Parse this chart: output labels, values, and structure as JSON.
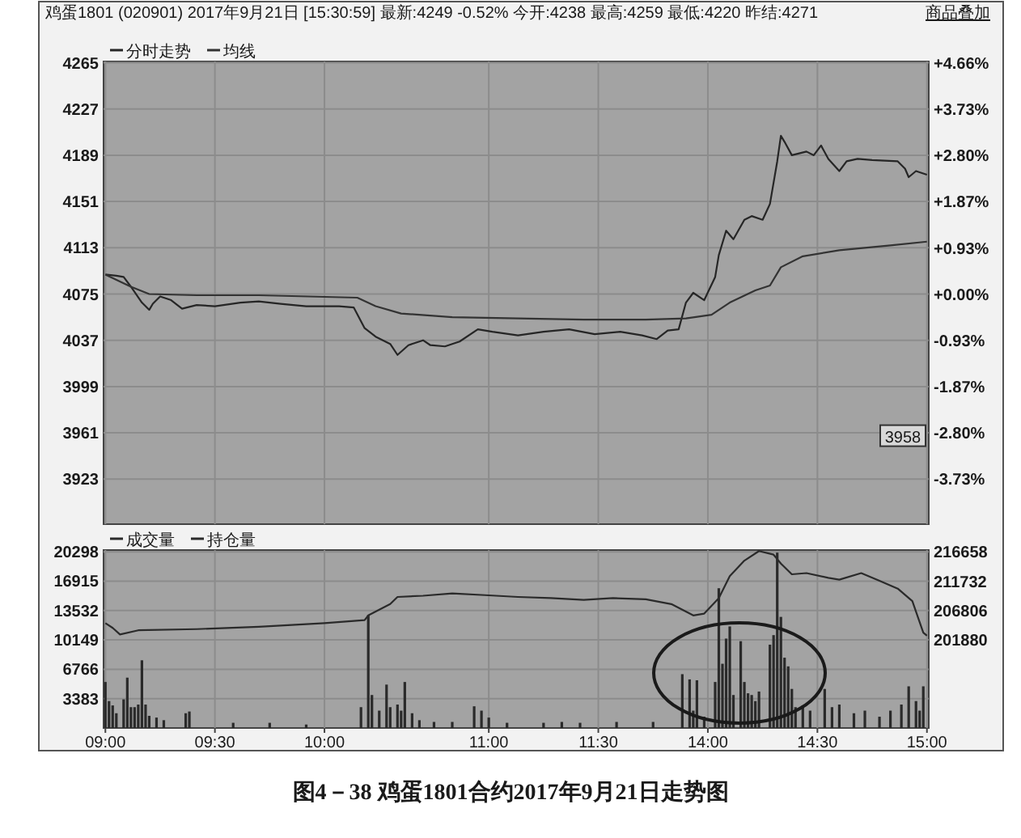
{
  "chart_data": [
    {
      "type": "line",
      "title": "鸡蛋1801 (020901) 2017年9月21日 [15:30:59] 最新:4249 -0.52% 今开:4238 最高:4259 最低:4220 昨结:4271",
      "categories": [
        null,
        null,
        null,
        null,
        null,
        null,
        null,
        null,
        null,
        null,
        null,
        null,
        null,
        null,
        null,
        null,
        null,
        null,
        null,
        null,
        null,
        null,
        null,
        null,
        null,
        null,
        null,
        null,
        null,
        null,
        null,
        null,
        null,
        null,
        null,
        null,
        null,
        null,
        null,
        null,
        null,
        null,
        null,
        null,
        null,
        null,
        null,
        null,
        null,
        null,
        null,
        null,
        null,
        null,
        null,
        null,
        null,
        null,
        null,
        null,
        null,
        null,
        null,
        null,
        null,
        null,
        null,
        null,
        null,
        null,
        null,
        null,
        null,
        null,
        null,
        null,
        null,
        null,
        null,
        null,
        null,
        null,
        null,
        null,
        null,
        null,
        null,
        null,
        null,
        null,
        null,
        null,
        null,
        null,
        null,
        null,
        null,
        null,
        null,
        null,
        null,
        null,
        null,
        null,
        null,
        null,
        null,
        null,
        null,
        null,
        null,
        null,
        null,
        null,
        null,
        null,
        null,
        null,
        null,
        null,
        null,
        null,
        null,
        null,
        null,
        null,
        null,
        null,
        null,
        null,
        null,
        null,
        null,
        null,
        null,
        null,
        null,
        null,
        null,
        null,
        null,
        null,
        null,
        null,
        null,
        null,
        null,
        null,
        null,
        null,
        null,
        null,
        null,
        null,
        null,
        null,
        null,
        null,
        null,
        null,
        null,
        null,
        null,
        null,
        null,
        null,
        null,
        null,
        null,
        null,
        null,
        null,
        null,
        null,
        null,
        null,
        null,
        null,
        null,
        null,
        null,
        null,
        null,
        null,
        null,
        null,
        null,
        null,
        null,
        null,
        null,
        null,
        null,
        null,
        null,
        null,
        null,
        null,
        null,
        null,
        null,
        null,
        null,
        null,
        null,
        null,
        null,
        null,
        null,
        null,
        null,
        null,
        null,
        null,
        null,
        null,
        null,
        null,
        null,
        null,
        null,
        null,
        null,
        null,
        null,
        null
      ],
      "ylim": [
        3886,
        4266
      ],
      "yticks": [
        3923,
        3961,
        3999,
        4037,
        4075,
        4113,
        4151,
        4189,
        4227,
        4265
      ],
      "y2lim": [
        -4.64,
        4.69
      ],
      "y2ticks": [
        {
          "value": 4.66,
          "label": "+4.66%"
        },
        {
          "value": 3.73,
          "label": "+3.73%"
        },
        {
          "value": 2.8,
          "label": "+2.80%"
        },
        {
          "value": 1.87,
          "label": "+1.87%"
        },
        {
          "value": 0.93,
          "label": "+0.93%"
        },
        {
          "value": 0,
          "label": "+0.00%"
        },
        {
          "value": -0.93,
          "label": "-0.93%"
        },
        {
          "value": -1.87,
          "label": "-1.87%"
        },
        {
          "value": -2.8,
          "label": "-2.80%"
        },
        {
          "value": -3.73,
          "label": "-3.73%"
        }
      ],
      "grid": true,
      "legend": "top left",
      "tick_labels": "y",
      "series": [
        {
          "name": "分时走势",
          "color": "#262626",
          "values": [
            4091,
            null,
            null,
            4090,
            null,
            4089,
            null,
            4081,
            null,
            null,
            4068,
            null,
            4062,
            4067,
            null,
            4073,
            null,
            null,
            4070,
            null,
            null,
            4063,
            null,
            null,
            null,
            4066,
            null,
            null,
            null,
            null,
            4065,
            null,
            null,
            null,
            null,
            null,
            null,
            4068,
            null,
            null,
            null,
            null,
            4069,
            null,
            null,
            null,
            null,
            null,
            4067,
            null,
            null,
            null,
            null,
            null,
            null,
            4065,
            null,
            null,
            null,
            null,
            null,
            null,
            null,
            null,
            4065,
            null,
            null,
            null,
            4064,
            null,
            null,
            4047,
            null,
            null,
            4040,
            null,
            null,
            null,
            4034,
            null,
            4025,
            null,
            null,
            4033,
            null,
            null,
            null,
            4037,
            null,
            4033,
            null,
            null,
            null,
            4032,
            null,
            null,
            null,
            4036,
            null,
            null,
            null,
            null,
            4046,
            null,
            null,
            null,
            4044,
            null,
            null,
            null,
            null,
            null,
            null,
            4041,
            null,
            null,
            null,
            null,
            null,
            null,
            4044,
            null,
            null,
            null,
            null,
            null,
            null,
            4046,
            null,
            null,
            null,
            null,
            null,
            null,
            4042,
            null,
            null,
            null,
            null,
            null,
            null,
            4044,
            null,
            null,
            null,
            null,
            null,
            4041,
            null,
            null,
            null,
            4038,
            null,
            null,
            4045,
            null,
            null,
            4046,
            null,
            4068,
            null,
            4076,
            null,
            null,
            4070,
            null,
            null,
            4089,
            4107,
            null,
            4127,
            null,
            4120,
            null,
            null,
            4136,
            null,
            4139,
            null,
            null,
            4136,
            null,
            4149,
            null,
            4184,
            4205,
            4200,
            null,
            4189,
            null,
            null,
            null,
            4192,
            null,
            4189,
            null,
            4197,
            null,
            4186,
            null,
            null,
            4176,
            null,
            4184,
            null,
            null,
            4186,
            null,
            null,
            null,
            4185,
            null,
            null,
            null,
            null,
            null,
            null,
            4184,
            null,
            4178,
            4171,
            null,
            4176,
            null,
            null,
            4173
          ]
        },
        {
          "name": "均线",
          "color": "#333333",
          "values": [
            4091,
            null,
            null,
            null,
            null,
            null,
            null,
            4081,
            null,
            null,
            null,
            null,
            4075,
            null,
            null,
            null,
            null,
            null,
            null,
            null,
            null,
            null,
            null,
            null,
            null,
            4074,
            null,
            null,
            null,
            null,
            null,
            null,
            null,
            null,
            null,
            null,
            null,
            null,
            null,
            null,
            null,
            null,
            4074,
            null,
            null,
            null,
            null,
            null,
            null,
            null,
            null,
            null,
            null,
            null,
            null,
            null,
            null,
            null,
            null,
            null,
            null,
            null,
            null,
            null,
            null,
            null,
            null,
            null,
            null,
            4072,
            null,
            null,
            null,
            null,
            4065,
            null,
            null,
            null,
            null,
            null,
            null,
            4059,
            null,
            null,
            null,
            null,
            null,
            null,
            null,
            null,
            null,
            null,
            null,
            null,
            null,
            4056,
            null,
            null,
            null,
            null,
            null,
            null,
            null,
            null,
            null,
            null,
            null,
            null,
            null,
            null,
            null,
            null,
            null,
            4055,
            null,
            null,
            null,
            null,
            null,
            null,
            null,
            null,
            null,
            null,
            null,
            null,
            null,
            null,
            null,
            null,
            null,
            4054,
            null,
            null,
            null,
            null,
            null,
            null,
            null,
            null,
            null,
            null,
            null,
            null,
            null,
            null,
            null,
            null,
            4054,
            null,
            null,
            null,
            null,
            null,
            null,
            null,
            null,
            null,
            null,
            4055,
            null,
            null,
            null,
            null,
            null,
            null,
            4058,
            null,
            null,
            null,
            null,
            4068,
            null,
            null,
            null,
            null,
            null,
            null,
            4078,
            null,
            null,
            null,
            4082,
            null,
            null,
            4097,
            null,
            null,
            null,
            null,
            null,
            4106,
            null,
            null,
            null,
            null,
            null,
            null,
            null,
            null,
            null,
            4111,
            null,
            null,
            null,
            null,
            null,
            null,
            null,
            null,
            null,
            null,
            null,
            null,
            null,
            4115,
            null,
            null,
            null,
            null,
            null,
            null,
            null,
            null,
            null,
            4118
          ]
        }
      ],
      "annotations": [
        "商品叠加",
        {
          "text": "3958",
          "y": 3958
        }
      ]
    },
    {
      "type": "bar",
      "categories": [
        "09:00",
        null,
        null,
        null,
        null,
        null,
        null,
        null,
        null,
        null,
        null,
        null,
        null,
        null,
        null,
        null,
        null,
        null,
        null,
        null,
        null,
        null,
        null,
        null,
        null,
        null,
        null,
        null,
        null,
        null,
        "09:30",
        null,
        null,
        null,
        null,
        null,
        null,
        null,
        null,
        null,
        null,
        null,
        null,
        null,
        null,
        null,
        null,
        null,
        null,
        null,
        null,
        null,
        null,
        null,
        null,
        null,
        null,
        null,
        null,
        null,
        "10:00",
        null,
        null,
        null,
        null,
        null,
        null,
        null,
        null,
        null,
        null,
        null,
        null,
        null,
        null,
        null,
        null,
        null,
        null,
        null,
        null,
        null,
        null,
        null,
        null,
        null,
        null,
        null,
        null,
        null,
        null,
        null,
        null,
        null,
        null,
        null,
        null,
        null,
        null,
        null,
        null,
        null,
        null,
        null,
        null,
        "11:00",
        null,
        null,
        null,
        null,
        null,
        null,
        null,
        null,
        null,
        null,
        null,
        null,
        null,
        null,
        null,
        null,
        null,
        null,
        null,
        null,
        null,
        null,
        null,
        null,
        null,
        null,
        null,
        null,
        null,
        "11:30",
        null,
        null,
        null,
        null,
        null,
        null,
        null,
        null,
        null,
        null,
        null,
        null,
        null,
        null,
        null,
        null,
        null,
        null,
        null,
        null,
        null,
        null,
        null,
        null,
        null,
        null,
        null,
        null,
        null,
        "14:00",
        null,
        null,
        null,
        null,
        null,
        null,
        null,
        null,
        null,
        null,
        null,
        null,
        null,
        null,
        null,
        null,
        null,
        null,
        null,
        null,
        null,
        null,
        null,
        null,
        null,
        null,
        null,
        null,
        null,
        "14:30",
        null,
        null,
        null,
        null,
        null,
        null,
        null,
        null,
        null,
        null,
        null,
        null,
        null,
        null,
        null,
        null,
        null,
        null,
        null,
        null,
        null,
        null,
        null,
        null,
        null,
        null,
        null,
        null,
        null,
        "15:00"
      ],
      "ylim": [
        0,
        20500
      ],
      "yticks": [
        3383,
        6766,
        10149,
        13532,
        16915,
        20298
      ],
      "y2lim": [
        187102,
        216972
      ],
      "y2ticks": [
        201880,
        206806,
        211732,
        216658
      ],
      "grid": true,
      "legend": "top left",
      "series": [
        {
          "name": "成交量",
          "color": "#2a2a2a",
          "values": [
            5300,
            3100,
            2600,
            1700,
            null,
            3300,
            5800,
            2400,
            2400,
            2700,
            7800,
            2700,
            1400,
            null,
            1200,
            null,
            900,
            null,
            null,
            null,
            null,
            null,
            1700,
            1900,
            null,
            null,
            null,
            null,
            null,
            null,
            null,
            null,
            null,
            null,
            null,
            600,
            null,
            null,
            null,
            null,
            null,
            null,
            null,
            null,
            null,
            600,
            null,
            null,
            null,
            null,
            null,
            null,
            null,
            null,
            null,
            400,
            null,
            null,
            null,
            null,
            null,
            null,
            null,
            null,
            null,
            null,
            null,
            null,
            null,
            null,
            2400,
            null,
            13000,
            3800,
            null,
            2000,
            null,
            5000,
            2400,
            null,
            2700,
            2000,
            5300,
            null,
            1700,
            null,
            900,
            null,
            null,
            null,
            700,
            null,
            null,
            null,
            null,
            700,
            null,
            null,
            null,
            null,
            null,
            2500,
            null,
            2000,
            null,
            1200,
            null,
            null,
            null,
            null,
            600,
            null,
            null,
            null,
            null,
            null,
            null,
            null,
            null,
            null,
            600,
            null,
            null,
            null,
            null,
            700,
            null,
            null,
            null,
            null,
            600,
            null,
            null,
            null,
            null,
            null,
            null,
            null,
            null,
            null,
            700,
            null,
            null,
            null,
            null,
            null,
            null,
            null,
            null,
            null,
            700,
            null,
            null,
            null,
            null,
            null,
            null,
            null,
            6200,
            null,
            5600,
            2000,
            5500,
            null,
            1300,
            null,
            null,
            5300,
            16100,
            7400,
            10300,
            11700,
            3800,
            null,
            10000,
            5300,
            4000,
            3800,
            3100,
            4200,
            null,
            null,
            9600,
            10700,
            20200,
            12800,
            8100,
            7100,
            4500,
            2400,
            null,
            2600,
            null,
            2000,
            null,
            null,
            null,
            4500,
            null,
            2400,
            null,
            2700,
            null,
            null,
            null,
            1700,
            null,
            null,
            2000,
            null,
            null,
            null,
            1300,
            null,
            null,
            2000,
            null,
            null,
            2700,
            null,
            4800,
            null,
            3100,
            2000,
            4800,
            null
          ]
        },
        {
          "name": "持仓量",
          "type": "line",
          "axis": "y2",
          "color": "#2a2a2a",
          "values": [
            204700,
            null,
            203900,
            null,
            202800,
            null,
            null,
            null,
            null,
            203500,
            null,
            null,
            null,
            null,
            null,
            null,
            null,
            null,
            null,
            null,
            null,
            null,
            null,
            null,
            null,
            203700,
            null,
            null,
            null,
            null,
            null,
            null,
            null,
            null,
            null,
            null,
            null,
            null,
            null,
            null,
            null,
            null,
            204100,
            null,
            null,
            null,
            null,
            null,
            null,
            null,
            null,
            null,
            null,
            null,
            null,
            null,
            null,
            null,
            null,
            null,
            204700,
            null,
            null,
            null,
            null,
            null,
            null,
            null,
            null,
            null,
            null,
            205200,
            206000,
            null,
            null,
            null,
            null,
            null,
            207900,
            null,
            209100,
            null,
            null,
            null,
            null,
            null,
            null,
            209300,
            null,
            null,
            null,
            null,
            null,
            null,
            null,
            209700,
            null,
            null,
            null,
            null,
            null,
            null,
            null,
            null,
            209400,
            null,
            null,
            null,
            null,
            null,
            null,
            null,
            null,
            209100,
            null,
            null,
            null,
            null,
            null,
            null,
            null,
            null,
            208900,
            null,
            null,
            null,
            null,
            null,
            null,
            null,
            null,
            208600,
            null,
            null,
            null,
            null,
            null,
            null,
            null,
            208900,
            null,
            null,
            null,
            null,
            null,
            null,
            null,
            null,
            208700,
            null,
            null,
            null,
            null,
            null,
            null,
            207900,
            null,
            null,
            null,
            null,
            null,
            206000,
            null,
            null,
            206300,
            null,
            null,
            null,
            208900,
            null,
            null,
            212600,
            null,
            null,
            null,
            215200,
            null,
            null,
            null,
            216800,
            null,
            null,
            null,
            216200,
            null,
            214700,
            null,
            null,
            212900,
            null,
            null,
            null,
            213100,
            null,
            null,
            null,
            null,
            null,
            212300,
            null,
            null,
            212000,
            null,
            null,
            null,
            null,
            null,
            213100,
            null,
            null,
            null,
            null,
            211800,
            null,
            null,
            null,
            null,
            210500,
            null,
            null,
            null,
            208400,
            null,
            null,
            203100,
            202600
          ]
        }
      ],
      "annotations": [
        "图4－38 鸡蛋1801合约2017年9月21日走势图"
      ]
    }
  ]
}
